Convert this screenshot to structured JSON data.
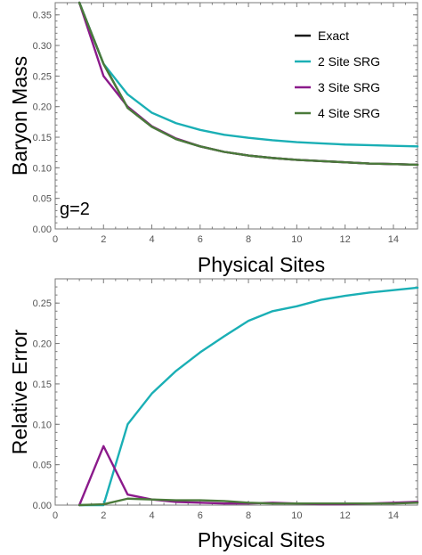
{
  "colors": {
    "exact": "#1a1a1a",
    "srg2": "#1aafb5",
    "srg3": "#8b1a8b",
    "srg4": "#4a7a3a"
  },
  "chart_data": [
    {
      "type": "line",
      "title": "",
      "xlabel": "Physical Sites",
      "ylabel": "Baryon Mass",
      "xlim": [
        0,
        15
      ],
      "ylim": [
        0,
        0.37
      ],
      "x_ticks": [
        0,
        2,
        4,
        6,
        8,
        10,
        12,
        14
      ],
      "y_ticks": [
        0.0,
        0.05,
        0.1,
        0.15,
        0.2,
        0.25,
        0.3,
        0.35
      ],
      "x_tick_labels": [
        "0",
        "2",
        "4",
        "6",
        "8",
        "10",
        "12",
        "14"
      ],
      "y_tick_labels": [
        "0.00",
        "0.05",
        "0.10",
        "0.15",
        "0.20",
        "0.25",
        "0.30",
        "0.35"
      ],
      "annotation": "g=2",
      "legend_position": "top-right",
      "grid": false,
      "x": [
        1,
        2,
        3,
        4,
        5,
        6,
        7,
        8,
        9,
        10,
        11,
        12,
        13,
        14,
        15
      ],
      "series": [
        {
          "name": "Exact",
          "color_key": "exact",
          "values": [
            0.37,
            0.27,
            0.198,
            0.167,
            0.147,
            0.135,
            0.126,
            0.12,
            0.116,
            0.113,
            0.111,
            0.109,
            0.107,
            0.106,
            0.105
          ]
        },
        {
          "name": "2 Site SRG",
          "color_key": "srg2",
          "values": [
            0.37,
            0.27,
            0.22,
            0.19,
            0.173,
            0.162,
            0.154,
            0.149,
            0.145,
            0.142,
            0.14,
            0.138,
            0.137,
            0.136,
            0.135
          ]
        },
        {
          "name": "3 Site SRG",
          "color_key": "srg3",
          "values": [
            0.37,
            0.25,
            0.2,
            0.168,
            0.148,
            0.135,
            0.126,
            0.12,
            0.116,
            0.113,
            0.111,
            0.109,
            0.107,
            0.106,
            0.105
          ]
        },
        {
          "name": "4 Site SRG",
          "color_key": "srg4",
          "values": [
            0.37,
            0.27,
            0.198,
            0.167,
            0.147,
            0.135,
            0.126,
            0.12,
            0.116,
            0.113,
            0.111,
            0.109,
            0.107,
            0.106,
            0.105
          ]
        }
      ]
    },
    {
      "type": "line",
      "title": "",
      "xlabel": "Physical Sites",
      "ylabel": "Relative Error",
      "xlim": [
        0,
        15
      ],
      "ylim": [
        0,
        0.28
      ],
      "x_ticks": [
        0,
        2,
        4,
        6,
        8,
        10,
        12,
        14
      ],
      "y_ticks": [
        0.0,
        0.05,
        0.1,
        0.15,
        0.2,
        0.25
      ],
      "x_tick_labels": [
        "0",
        "2",
        "4",
        "6",
        "8",
        "10",
        "12",
        "14"
      ],
      "y_tick_labels": [
        "0.00",
        "0.05",
        "0.10",
        "0.15",
        "0.20",
        "0.25"
      ],
      "grid": false,
      "x": [
        1,
        2,
        3,
        4,
        5,
        6,
        7,
        8,
        9,
        10,
        11,
        12,
        13,
        14,
        15
      ],
      "series": [
        {
          "color_key": "srg2",
          "values": [
            0.0,
            0.0,
            0.1,
            0.138,
            0.166,
            0.189,
            0.209,
            0.228,
            0.24,
            0.246,
            0.254,
            0.259,
            0.263,
            0.266,
            0.269
          ]
        },
        {
          "color_key": "srg3",
          "values": [
            0.0,
            0.073,
            0.013,
            0.007,
            0.004,
            0.003,
            0.002,
            0.002,
            0.003,
            0.002,
            0.001,
            0.001,
            0.002,
            0.003,
            0.004
          ]
        },
        {
          "color_key": "srg4",
          "values": [
            0.0,
            0.001,
            0.008,
            0.007,
            0.006,
            0.006,
            0.005,
            0.003,
            0.002,
            0.002,
            0.002,
            0.002,
            0.002,
            0.002,
            0.003
          ]
        }
      ]
    }
  ]
}
